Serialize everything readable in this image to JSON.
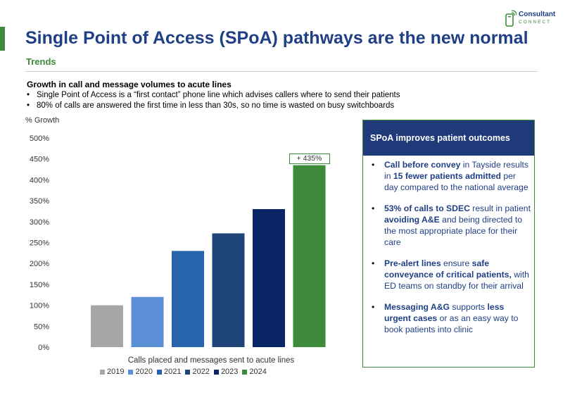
{
  "header": {
    "title": "Single Point of Access (SPoA) pathways are the new normal",
    "subtitle": "Trends",
    "logo_text": "Consultant",
    "logo_sub": "CONNECT"
  },
  "intro": {
    "heading": "Growth in call and message volumes to acute lines",
    "bullets": [
      "Single Point of Access is a “first contact” phone line which advises callers where to send their patients",
      "80% of calls are answered the first time in less than 30s, so no time is wasted on busy switchboards"
    ]
  },
  "chart_data": {
    "type": "bar",
    "ylabel": "% Growth",
    "xlabel": "Calls placed and messages sent to acute lines",
    "categories": [
      "2019",
      "2020",
      "2021",
      "2022",
      "2023",
      "2024"
    ],
    "values": [
      100,
      120,
      230,
      272,
      330,
      435
    ],
    "colors": [
      "#a6a6a6",
      "#5b8fd6",
      "#2863ad",
      "#1f4478",
      "#0a2565",
      "#3c8a3a"
    ],
    "ylim": [
      0,
      500
    ],
    "yticks": [
      "0%",
      "50%",
      "100%",
      "150%",
      "200%",
      "250%",
      "300%",
      "350%",
      "400%",
      "450%",
      "500%"
    ],
    "annotation": "+ 435%",
    "legend_position": "bottom",
    "grid": false
  },
  "panel": {
    "title": "SPoA improves patient outcomes",
    "items": [
      [
        {
          "t": "Call before convey",
          "b": true
        },
        {
          "t": " in Tayside results in ",
          "b": false
        },
        {
          "t": "15 fewer patients admitted",
          "b": true
        },
        {
          "t": " per day compared to the national average",
          "b": false
        }
      ],
      [
        {
          "t": "53% of calls to SDEC",
          "b": true
        },
        {
          "t": " result in patient ",
          "b": false
        },
        {
          "t": "avoiding A&E",
          "b": true
        },
        {
          "t": " and being directed to the most appropriate place for their care",
          "b": false
        }
      ],
      [
        {
          "t": "Pre-alert lines",
          "b": true
        },
        {
          "t": " ensure ",
          "b": false
        },
        {
          "t": "safe conveyance of critical patients,",
          "b": true
        },
        {
          "t": " with ED teams on standby for their arrival",
          "b": false
        }
      ],
      [
        {
          "t": "Messaging A&G",
          "b": true
        },
        {
          "t": " supports ",
          "b": false
        },
        {
          "t": "less urgent cases",
          "b": true
        },
        {
          "t": " or as an easy way to book patients into clinic",
          "b": false
        }
      ]
    ]
  }
}
